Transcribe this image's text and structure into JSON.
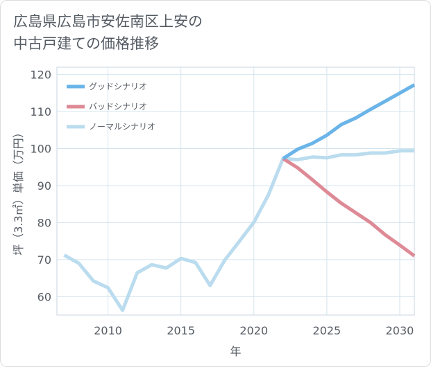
{
  "title_lines": [
    "広島県広島市安佐南区上安の",
    "中古戸建ての価格推移"
  ],
  "chart_data": {
    "type": "line",
    "title": "広島県広島市安佐南区上安の中古戸建ての価格推移",
    "xlabel": "年",
    "ylabel": "坪（3.3㎡）単価（万円）",
    "xlim": [
      2006.5,
      2031
    ],
    "ylim": [
      55,
      122
    ],
    "xticks": [
      2010,
      2015,
      2020,
      2025,
      2030
    ],
    "yticks": [
      60,
      70,
      80,
      90,
      100,
      110,
      120
    ],
    "grid": true,
    "legend_position": "top-left",
    "series": [
      {
        "name": "グッドシナリオ",
        "color": "#6ab4e8",
        "points": [
          [
            2022,
            97.3
          ],
          [
            2023,
            99.8
          ],
          [
            2024,
            101.4
          ],
          [
            2025,
            103.6
          ],
          [
            2026,
            106.5
          ],
          [
            2027,
            108.3
          ],
          [
            2028,
            110.6
          ],
          [
            2029,
            112.8
          ],
          [
            2030,
            115
          ],
          [
            2031,
            117.2
          ]
        ]
      },
      {
        "name": "バッドシナリオ",
        "color": "#de8a96",
        "points": [
          [
            2022,
            97.3
          ],
          [
            2023,
            94.8
          ],
          [
            2024,
            91.6
          ],
          [
            2025,
            88.3
          ],
          [
            2026,
            85.2
          ],
          [
            2027,
            82.6
          ],
          [
            2028,
            80
          ],
          [
            2029,
            76.7
          ],
          [
            2030,
            73.9
          ],
          [
            2031,
            71
          ]
        ]
      },
      {
        "name": "ノーマルシナリオ",
        "color": "#badcee",
        "points": [
          [
            2007,
            71.2
          ],
          [
            2008,
            69
          ],
          [
            2009,
            64.2
          ],
          [
            2010,
            62.4
          ],
          [
            2011,
            56.3
          ],
          [
            2012,
            66.4
          ],
          [
            2013,
            68.6
          ],
          [
            2014,
            67.7
          ],
          [
            2015,
            70.3
          ],
          [
            2016,
            69.2
          ],
          [
            2017,
            63
          ],
          [
            2018,
            69.8
          ],
          [
            2019,
            74.9
          ],
          [
            2020,
            80.1
          ],
          [
            2021,
            87.5
          ],
          [
            2022,
            97.3
          ],
          [
            2023,
            97
          ],
          [
            2024,
            97.7
          ],
          [
            2025,
            97.5
          ],
          [
            2026,
            98.3
          ],
          [
            2027,
            98.3
          ],
          [
            2028,
            98.8
          ],
          [
            2029,
            98.8
          ],
          [
            2030,
            99.4
          ],
          [
            2031,
            99.4
          ]
        ]
      }
    ]
  }
}
